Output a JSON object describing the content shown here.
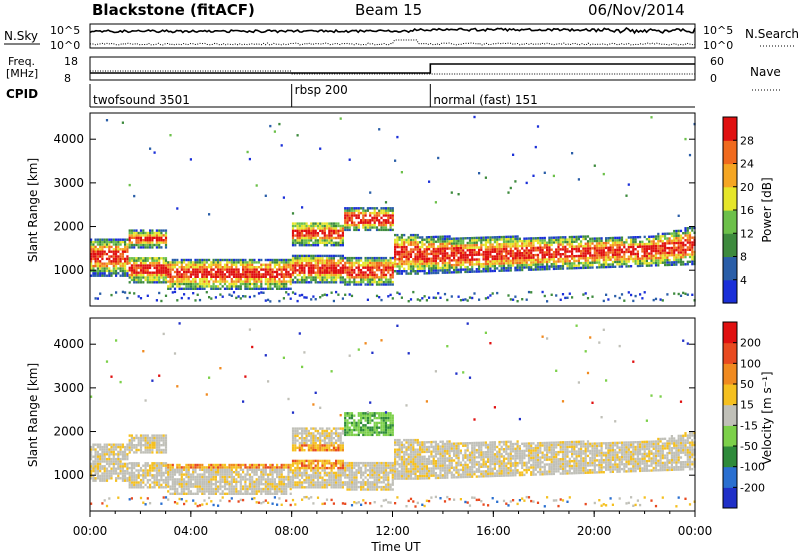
{
  "header": {
    "station": "Blackstone (fitACF)",
    "beam": "Beam 15",
    "date": "06/Nov/2014"
  },
  "noise_panel": {
    "left_label": "N.Sky",
    "right_label": "N.Search",
    "left_ticks": [
      "10^5",
      "10^0"
    ],
    "right_ticks": [
      "10^5",
      "10^0"
    ]
  },
  "freq_panel": {
    "left_label_1": "Freq.",
    "left_label_2": "[MHz]",
    "left_ticks": [
      "18",
      "8"
    ],
    "right_label": "Nave",
    "right_ticks": [
      "60",
      "0"
    ]
  },
  "cpid": {
    "label": "CPID",
    "segments": [
      {
        "start_hour": 0,
        "name": "twofsound 3501"
      },
      {
        "start_hour": 8,
        "name": "rbsp 200"
      },
      {
        "start_hour": 13.5,
        "name": "normal (fast) 151"
      }
    ]
  },
  "chart_data": [
    {
      "type": "heatmap",
      "panel": "power",
      "ylabel": "Slant Range [km]",
      "yticks": [
        "1000",
        "2000",
        "3000",
        "4000"
      ],
      "ylim": [
        180,
        4600
      ],
      "xlim_hours": [
        0,
        24
      ],
      "colorbar_label": "Power [dB]",
      "colorbar_ticks": [
        "4",
        "8",
        "12",
        "16",
        "20",
        "24",
        "28"
      ],
      "colorbar_colors": [
        "#1a2fd8",
        "#2a5ea8",
        "#3d8a3d",
        "#6cc04a",
        "#e6e62a",
        "#f5a623",
        "#f06a1e",
        "#e01010"
      ]
    },
    {
      "type": "heatmap",
      "panel": "velocity",
      "ylabel": "Slant Range [km]",
      "yticks": [
        "1000",
        "2000",
        "3000",
        "4000"
      ],
      "ylim": [
        180,
        4600
      ],
      "xlim_hours": [
        0,
        24
      ],
      "colorbar_label": "Velocity [m s⁻¹]",
      "colorbar_ticks": [
        "200",
        "100",
        "50",
        "15",
        "-15",
        "-50",
        "-100",
        "-200"
      ],
      "colorbar_colors": [
        "#2030c8",
        "#2a6fd0",
        "#2e8a3a",
        "#7cd04a",
        "#c0c0b8",
        "#f5c020",
        "#f08a20",
        "#e84a20",
        "#e01010"
      ]
    }
  ],
  "x_axis": {
    "ticks": [
      "00:00",
      "04:00",
      "08:00",
      "12:00",
      "16:00",
      "20:00",
      "00:00"
    ],
    "label": "Time UT"
  }
}
